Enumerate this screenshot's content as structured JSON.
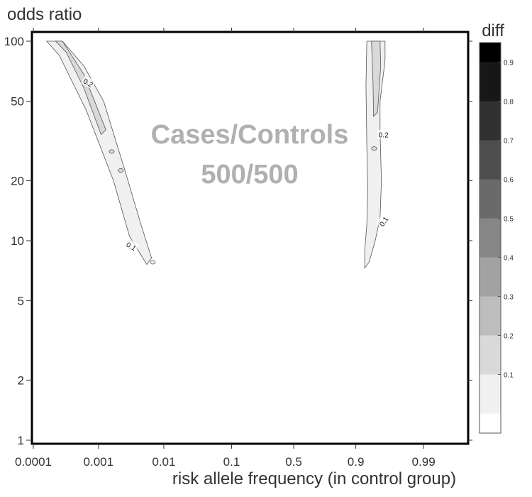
{
  "chart_data": {
    "type": "contour",
    "ylabel": "odds ratio",
    "xlabel": "risk allele frequency (in control group)",
    "annotation": [
      "Cases/Controls",
      "500/500"
    ],
    "y_scale": "log",
    "ylim": [
      1,
      100
    ],
    "y_ticks": [
      {
        "value": 1,
        "label": "1"
      },
      {
        "value": 2,
        "label": "2"
      },
      {
        "value": 5,
        "label": "5"
      },
      {
        "value": 10,
        "label": "10"
      },
      {
        "value": 20,
        "label": "20"
      },
      {
        "value": 50,
        "label": "50"
      },
      {
        "value": 100,
        "label": "100"
      }
    ],
    "x_scale": "logit",
    "xlim": [
      0.0001,
      0.995
    ],
    "x_ticks": [
      {
        "value": 0.0001,
        "label": "0.0001"
      },
      {
        "value": 0.001,
        "label": "0.001"
      },
      {
        "value": 0.01,
        "label": "0.01"
      },
      {
        "value": 0.1,
        "label": "0.1"
      },
      {
        "value": 0.5,
        "label": "0.5"
      },
      {
        "value": 0.9,
        "label": "0.9"
      },
      {
        "value": 0.99,
        "label": "0.99"
      }
    ],
    "colorbar": {
      "title": "diff",
      "levels": [
        0.0,
        0.1,
        0.2,
        0.3,
        0.4,
        0.5,
        0.6,
        0.7,
        0.8,
        0.9,
        1.0
      ],
      "tick_labels": [
        "0.1",
        "0.2",
        "0.3",
        "0.4",
        "0.5",
        "0.6",
        "0.7",
        "0.8",
        "0.9"
      ],
      "colors": [
        "#ffffff",
        "#f0f0f0",
        "#d9d9d9",
        "#bdbdbd",
        "#a2a2a2",
        "#868686",
        "#6a6a6a",
        "#4d4d4d",
        "#313131",
        "#171717",
        "#000000"
      ]
    },
    "contour_labels": [
      {
        "text": "0.2",
        "x": 0.0007,
        "y": 62
      },
      {
        "text": "0.1",
        "x": 0.0032,
        "y": 9.4
      },
      {
        "text": "0.2",
        "x": 0.96,
        "y": 34
      },
      {
        "text": "0.1",
        "x": 0.96,
        "y": 12.5
      }
    ],
    "regions": [
      {
        "level": 0.1,
        "points": [
          [
            0.00016,
            100
          ],
          [
            0.00028,
            100
          ],
          [
            0.0006,
            75
          ],
          [
            0.0012,
            50
          ],
          [
            0.0026,
            22
          ],
          [
            0.0045,
            12
          ],
          [
            0.0065,
            8.2
          ],
          [
            0.0055,
            7.6
          ],
          [
            0.003,
            10.5
          ],
          [
            0.0017,
            20
          ],
          [
            0.00065,
            45
          ],
          [
            0.00025,
            85
          ]
        ]
      },
      {
        "level": 0.2,
        "points": [
          [
            0.00022,
            100
          ],
          [
            0.00028,
            100
          ],
          [
            0.0006,
            68
          ],
          [
            0.0013,
            36
          ],
          [
            0.0011,
            34
          ],
          [
            0.0006,
            58
          ],
          [
            0.00032,
            88
          ]
        ]
      },
      {
        "level": 0.1,
        "points": [
          [
            0.93,
            100
          ],
          [
            0.962,
            100
          ],
          [
            0.962,
            80
          ],
          [
            0.955,
            50
          ],
          [
            0.955,
            35
          ],
          [
            0.957,
            20
          ],
          [
            0.955,
            13
          ],
          [
            0.947,
            10
          ],
          [
            0.935,
            7.8
          ],
          [
            0.925,
            7.3
          ],
          [
            0.925,
            9
          ],
          [
            0.93,
            12
          ],
          [
            0.932,
            18
          ],
          [
            0.93,
            30
          ],
          [
            0.928,
            60
          ]
        ]
      },
      {
        "level": 0.2,
        "points": [
          [
            0.94,
            100
          ],
          [
            0.955,
            100
          ],
          [
            0.956,
            75
          ],
          [
            0.951,
            44
          ],
          [
            0.944,
            42
          ],
          [
            0.943,
            62
          ]
        ]
      }
    ],
    "blobs": [
      {
        "level": 0.1,
        "x": 0.0068,
        "y": 7.8
      },
      {
        "level": 0.2,
        "x": 0.0016,
        "y": 28
      },
      {
        "level": 0.2,
        "x": 0.0022,
        "y": 22.5
      },
      {
        "level": 0.2,
        "x": 0.945,
        "y": 29
      }
    ]
  }
}
